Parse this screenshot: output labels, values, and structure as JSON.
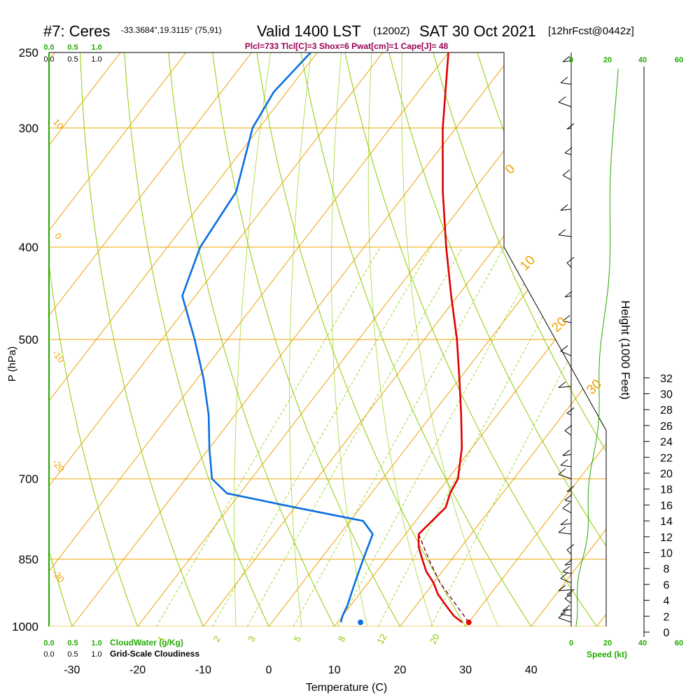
{
  "header": {
    "station": "#7: Ceres",
    "coords": "-33.3684\",19.3115° (75,91)",
    "valid": "Valid 1400 LST",
    "zulu": "(1200Z)",
    "date": "SAT 30 Oct 2021",
    "forecast": "[12hrFcst@0442z]",
    "indices": "Plcl=733 Tlcl[C]=3 Shox=6 Pwat[cm]=1 Cape[J]= 48"
  },
  "colors": {
    "temperature": "#e00000",
    "dewpoint": "#0a6fe0",
    "isotherm": "#f0a000",
    "dry_adiabat": "#8ccc00",
    "mixing_ratio": "#8ccc00",
    "label_green": "#22aa00",
    "label_maroon": "#990055",
    "parcel": "#7a0033"
  },
  "chart_data": {
    "type": "skew-t",
    "xlabel": "Temperature (C)",
    "ylabel": "P (hPa)",
    "y2label": "Height (1000 Feet)",
    "x_ticks": [
      -30,
      -20,
      -10,
      0,
      10,
      20,
      30,
      40
    ],
    "pressure_ticks": [
      250,
      300,
      400,
      500,
      700,
      850,
      1000
    ],
    "height_ticks": [
      0,
      2,
      4,
      6,
      8,
      10,
      12,
      14,
      16,
      18,
      20,
      22,
      24,
      26,
      28,
      30,
      32
    ],
    "isotherm_labels": [
      "10",
      "0",
      "-10",
      "-20",
      "-30",
      "0",
      "10",
      "20",
      "30"
    ],
    "mixing_ratio_labels": [
      "1",
      "2",
      "3",
      "5",
      "8",
      "12",
      "20"
    ],
    "cloud_axis_ticks": [
      "0.0",
      "0.5",
      "1.0"
    ],
    "cloudwater_label": "CloudWater (g/Kg)",
    "cloudiness_label": "Grid-Scale Cloudiness",
    "speed_ticks": [
      "0",
      "20",
      "40",
      "60"
    ],
    "speed_label": "Speed (kt)",
    "temperature": [
      {
        "p": 990,
        "t": 29.0
      },
      {
        "p": 975,
        "t": 27.0
      },
      {
        "p": 950,
        "t": 24.5
      },
      {
        "p": 925,
        "t": 22.0
      },
      {
        "p": 900,
        "t": 20.0
      },
      {
        "p": 875,
        "t": 17.5
      },
      {
        "p": 850,
        "t": 15.5
      },
      {
        "p": 825,
        "t": 13.5
      },
      {
        "p": 800,
        "t": 12.0
      },
      {
        "p": 775,
        "t": 12.5
      },
      {
        "p": 750,
        "t": 13.0
      },
      {
        "p": 725,
        "t": 12.0
      },
      {
        "p": 700,
        "t": 11.5
      },
      {
        "p": 650,
        "t": 8.5
      },
      {
        "p": 600,
        "t": 4.5
      },
      {
        "p": 550,
        "t": 0.0
      },
      {
        "p": 500,
        "t": -5.0
      },
      {
        "p": 450,
        "t": -11.0
      },
      {
        "p": 400,
        "t": -17.5
      },
      {
        "p": 350,
        "t": -24.5
      },
      {
        "p": 300,
        "t": -32.0
      },
      {
        "p": 250,
        "t": -40.0
      }
    ],
    "dewpoint": [
      {
        "p": 990,
        "t": 10.5
      },
      {
        "p": 975,
        "t": 10.0
      },
      {
        "p": 950,
        "t": 9.5
      },
      {
        "p": 900,
        "t": 8.0
      },
      {
        "p": 850,
        "t": 6.5
      },
      {
        "p": 800,
        "t": 5.0
      },
      {
        "p": 775,
        "t": 2.0
      },
      {
        "p": 750,
        "t": -10.0
      },
      {
        "p": 725,
        "t": -22.0
      },
      {
        "p": 700,
        "t": -26.0
      },
      {
        "p": 650,
        "t": -30.0
      },
      {
        "p": 600,
        "t": -34.0
      },
      {
        "p": 550,
        "t": -39.0
      },
      {
        "p": 500,
        "t": -45.0
      },
      {
        "p": 450,
        "t": -52.0
      },
      {
        "p": 400,
        "t": -55.0
      },
      {
        "p": 350,
        "t": -56.0
      },
      {
        "p": 300,
        "t": -61.0
      },
      {
        "p": 275,
        "t": -62.0
      },
      {
        "p": 250,
        "t": -61.0
      }
    ],
    "parcel": [
      {
        "p": 990,
        "t": 30.0
      },
      {
        "p": 900,
        "t": 21.0
      },
      {
        "p": 850,
        "t": 16.5
      },
      {
        "p": 800,
        "t": 12.0
      }
    ],
    "surface": {
      "temperature": 30.0,
      "dewpoint": 13.5,
      "p": 990
    },
    "wind_barbs": [
      {
        "p": 990
      },
      {
        "p": 975
      },
      {
        "p": 960
      },
      {
        "p": 945
      },
      {
        "p": 930
      },
      {
        "p": 915
      },
      {
        "p": 900
      },
      {
        "p": 880
      },
      {
        "p": 860
      },
      {
        "p": 840
      },
      {
        "p": 800
      },
      {
        "p": 780
      },
      {
        "p": 760
      },
      {
        "p": 740
      },
      {
        "p": 720
      },
      {
        "p": 700
      },
      {
        "p": 680
      },
      {
        "p": 660
      },
      {
        "p": 630
      },
      {
        "p": 600
      },
      {
        "p": 560
      },
      {
        "p": 520
      },
      {
        "p": 480
      },
      {
        "p": 450
      },
      {
        "p": 420
      },
      {
        "p": 390
      },
      {
        "p": 365
      },
      {
        "p": 340
      },
      {
        "p": 320
      },
      {
        "p": 300
      },
      {
        "p": 285
      },
      {
        "p": 270
      },
      {
        "p": 255
      }
    ]
  }
}
